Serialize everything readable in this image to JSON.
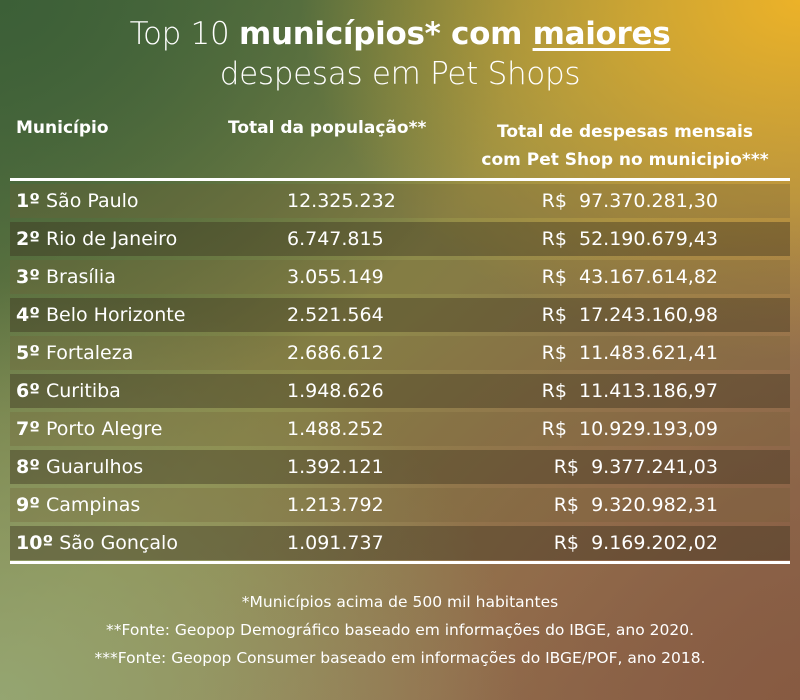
{
  "title": {
    "prefix": "Top 10 ",
    "bold": "municípios* com ",
    "underlined": "maiores",
    "line2": "despesas em Pet Shops"
  },
  "chart_data": {
    "type": "table",
    "columns": [
      "Município",
      "Total da população**",
      "Total de despesas mensais",
      "com Pet Shop no municipio***"
    ],
    "rows": [
      {
        "rank": "1º",
        "municipio": "São Paulo",
        "populacao": "12.325.232",
        "despesas": "R$  97.370.281,30"
      },
      {
        "rank": "2º",
        "municipio": "Rio de Janeiro",
        "populacao": "6.747.815",
        "despesas": "R$  52.190.679,43"
      },
      {
        "rank": "3º",
        "municipio": "Brasília",
        "populacao": "3.055.149",
        "despesas": "R$  43.167.614,82"
      },
      {
        "rank": "4º",
        "municipio": "Belo Horizonte",
        "populacao": "2.521.564",
        "despesas": "R$  17.243.160,98"
      },
      {
        "rank": "5º",
        "municipio": "Fortaleza",
        "populacao": "2.686.612",
        "despesas": "R$  11.483.621,41"
      },
      {
        "rank": "6º",
        "municipio": "Curitiba",
        "populacao": "1.948.626",
        "despesas": "R$  11.413.186,97"
      },
      {
        "rank": "7º",
        "municipio": "Porto Alegre",
        "populacao": "1.488.252",
        "despesas": "R$  10.929.193,09"
      },
      {
        "rank": "8º",
        "municipio": "Guarulhos",
        "populacao": "1.392.121",
        "despesas": "R$  9.377.241,03"
      },
      {
        "rank": "9º",
        "municipio": "Campinas",
        "populacao": "1.213.792",
        "despesas": "R$  9.320.982,31"
      },
      {
        "rank": "10º",
        "municipio": "São Gonçalo",
        "populacao": "1.091.737",
        "despesas": "R$  9.169.202,02"
      }
    ]
  },
  "notes": [
    "*Municípios acima de 500 mil habitantes",
    "**Fonte: Geopop Demográfico baseado em informações do IBGE, ano 2020.",
    "***Fonte: Geopop Consumer baseado em informações do IBGE/POF, ano 2018."
  ]
}
